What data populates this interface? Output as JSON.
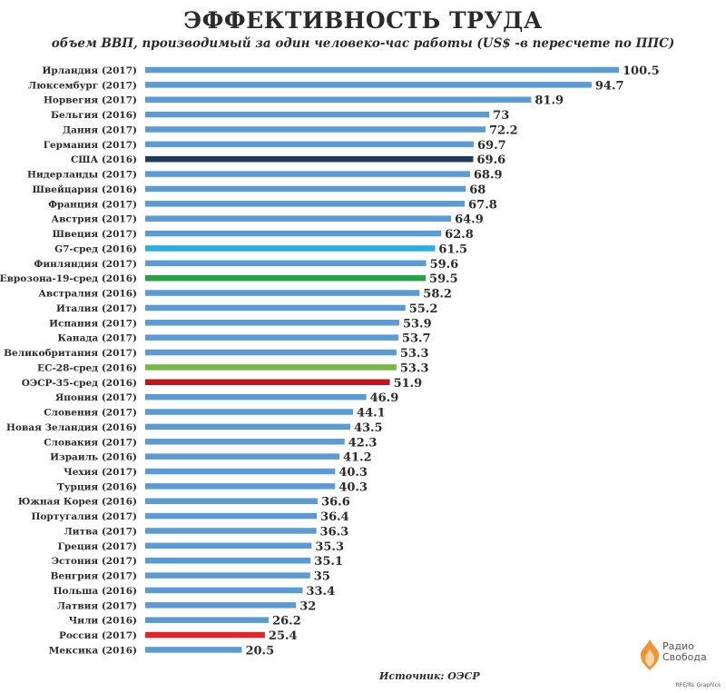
{
  "header": {
    "title": "ЭФФЕКТИВНОСТЬ ТРУДА",
    "subtitle": "объем ВВП, производимый за один человеко-час работы (US$ -в пересчете по ППС)"
  },
  "footer": {
    "source": "Источник: ОЭСР",
    "credit": "RFE/RL Graphics",
    "logo_line1": "Радио",
    "logo_line2": "Свобода"
  },
  "colors": {
    "default_bar": "#5b9bd5",
    "usa": "#1f3b5c",
    "g7": "#27aee3",
    "eurozone": "#21a444",
    "eu28": "#77b843",
    "oecd": "#c0161d",
    "russia": "#e2242b",
    "logo_accent": "#f08a1c"
  },
  "chart_data": {
    "type": "bar",
    "orientation": "horizontal",
    "title": "ЭФФЕКТИВНОСТЬ ТРУДА",
    "subtitle": "объем ВВП, производимый за один человеко-час работы (US$ -в пересчете по ППС)",
    "xlim": [
      0,
      100.5
    ],
    "grid": false,
    "legend": "none",
    "bars": [
      {
        "label": "Ирландия (2017)",
        "value": 100.5,
        "display": "100.5"
      },
      {
        "label": "Люксембург (2017)",
        "value": 94.7,
        "display": "94.7"
      },
      {
        "label": "Норвегия (2017)",
        "value": 81.9,
        "display": "81.9"
      },
      {
        "label": "Бельгия (2016)",
        "value": 73,
        "display": "73"
      },
      {
        "label": "Дания (2017)",
        "value": 72.2,
        "display": "72.2"
      },
      {
        "label": "Германия (2017)",
        "value": 69.7,
        "display": "69.7"
      },
      {
        "label": "США (2016)",
        "value": 69.6,
        "display": "69.6",
        "color": "usa"
      },
      {
        "label": "Нидерланды (2017)",
        "value": 68.9,
        "display": "68.9"
      },
      {
        "label": "Швейцария (2016)",
        "value": 68,
        "display": "68"
      },
      {
        "label": "Франция (2017)",
        "value": 67.8,
        "display": "67.8"
      },
      {
        "label": "Австрия (2017)",
        "value": 64.9,
        "display": "64.9"
      },
      {
        "label": "Швеция (2017)",
        "value": 62.8,
        "display": "62.8"
      },
      {
        "label": "G7-сред (2016)",
        "value": 61.5,
        "display": "61.5",
        "color": "g7"
      },
      {
        "label": "Финляндия (2017)",
        "value": 59.6,
        "display": "59.6"
      },
      {
        "label": "Еврозона-19-сред (2016)",
        "value": 59.5,
        "display": "59.5",
        "color": "eurozone"
      },
      {
        "label": "Австралия (2016)",
        "value": 58.2,
        "display": "58.2"
      },
      {
        "label": "Италия (2017)",
        "value": 55.2,
        "display": "55.2"
      },
      {
        "label": "Испания (2017)",
        "value": 53.9,
        "display": "53.9"
      },
      {
        "label": "Канада (2017)",
        "value": 53.7,
        "display": "53.7"
      },
      {
        "label": "Великобритания (2017)",
        "value": 53.3,
        "display": "53.3"
      },
      {
        "label": "ЕС-28-сред (2016)",
        "value": 53.3,
        "display": "53.3",
        "color": "eu28"
      },
      {
        "label": "ОЭСР-35-сред (2016)",
        "value": 51.9,
        "display": "51.9",
        "color": "oecd"
      },
      {
        "label": "Япония (2017)",
        "value": 46.9,
        "display": "46.9"
      },
      {
        "label": "Словения (2017)",
        "value": 44.1,
        "display": "44.1"
      },
      {
        "label": "Новая Зеландия (2016)",
        "value": 43.5,
        "display": "43.5"
      },
      {
        "label": "Словакия (2017)",
        "value": 42.3,
        "display": "42.3"
      },
      {
        "label": "Израиль (2016)",
        "value": 41.2,
        "display": "41.2"
      },
      {
        "label": "Чехия (2017)",
        "value": 40.3,
        "display": "40.3"
      },
      {
        "label": "Турция (2016)",
        "value": 40.3,
        "display": "40.3"
      },
      {
        "label": "Южная Корея (2016)",
        "value": 36.6,
        "display": "36.6"
      },
      {
        "label": "Португалия (2017)",
        "value": 36.4,
        "display": "36.4"
      },
      {
        "label": "Литва (2017)",
        "value": 36.3,
        "display": "36.3"
      },
      {
        "label": "Греция (2017)",
        "value": 35.3,
        "display": "35.3"
      },
      {
        "label": "Эстония (2017)",
        "value": 35.1,
        "display": "35.1"
      },
      {
        "label": "Венгрия (2017)",
        "value": 35,
        "display": "35"
      },
      {
        "label": "Польша (2016)",
        "value": 33.4,
        "display": "33.4"
      },
      {
        "label": "Латвия (2017)",
        "value": 32,
        "display": "32"
      },
      {
        "label": "Чили (2016)",
        "value": 26.2,
        "display": "26.2"
      },
      {
        "label": "Россия (2017)",
        "value": 25.4,
        "display": "25.4",
        "color": "russia"
      },
      {
        "label": "Мексика (2016)",
        "value": 20.5,
        "display": "20.5"
      }
    ]
  }
}
